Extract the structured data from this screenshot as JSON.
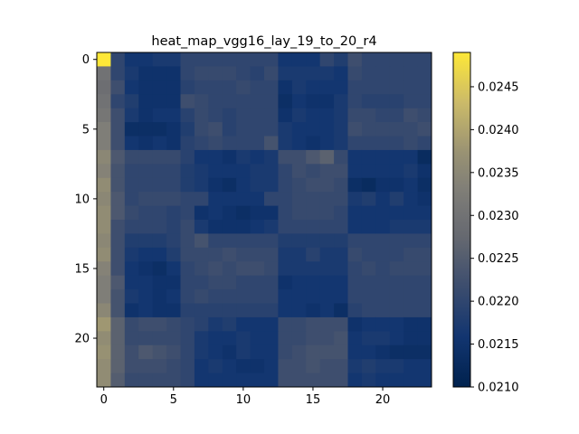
{
  "chart_data": {
    "type": "heatmap",
    "title": "heat_map_vgg16_lay_19_to_20_r4",
    "xlabel": "",
    "ylabel": "",
    "rows": 24,
    "cols": 24,
    "x_ticks": [
      0,
      5,
      10,
      15,
      20
    ],
    "y_ticks": [
      0,
      5,
      10,
      15,
      20
    ],
    "colorbar": {
      "colormap": "cividis",
      "vmin": 0.021,
      "vmax": 0.0249,
      "ticks": [
        "0.0210",
        "0.0215",
        "0.0220",
        "0.0225",
        "0.0230",
        "0.0235",
        "0.0240",
        "0.0245"
      ]
    },
    "values": [
      [
        0.0249,
        0.022,
        0.0216,
        0.0216,
        0.0217,
        0.0217,
        0.022,
        0.022,
        0.022,
        0.022,
        0.022,
        0.022,
        0.022,
        0.0216,
        0.0216,
        0.0216,
        0.022,
        0.0218,
        0.0222,
        0.022,
        0.022,
        0.022,
        0.022,
        0.022
      ],
      [
        0.023,
        0.022,
        0.0217,
        0.0215,
        0.0215,
        0.0215,
        0.022,
        0.0221,
        0.0221,
        0.0221,
        0.022,
        0.0219,
        0.0221,
        0.0217,
        0.0217,
        0.0217,
        0.0217,
        0.0216,
        0.0221,
        0.022,
        0.022,
        0.022,
        0.022,
        0.022
      ],
      [
        0.0229,
        0.0222,
        0.0216,
        0.0215,
        0.0215,
        0.0215,
        0.0219,
        0.022,
        0.022,
        0.022,
        0.0221,
        0.022,
        0.022,
        0.0215,
        0.0217,
        0.0216,
        0.0216,
        0.0216,
        0.022,
        0.022,
        0.022,
        0.022,
        0.022,
        0.022
      ],
      [
        0.023,
        0.022,
        0.0218,
        0.0215,
        0.0215,
        0.0215,
        0.0222,
        0.0221,
        0.022,
        0.022,
        0.022,
        0.022,
        0.022,
        0.0214,
        0.0216,
        0.0215,
        0.0215,
        0.0217,
        0.022,
        0.0219,
        0.0219,
        0.0219,
        0.022,
        0.022
      ],
      [
        0.0231,
        0.0222,
        0.0217,
        0.0215,
        0.0216,
        0.0216,
        0.0219,
        0.0221,
        0.022,
        0.0219,
        0.022,
        0.022,
        0.022,
        0.0215,
        0.0217,
        0.0216,
        0.0216,
        0.0217,
        0.0221,
        0.0221,
        0.022,
        0.022,
        0.0222,
        0.0221
      ],
      [
        0.0233,
        0.0222,
        0.0214,
        0.0214,
        0.0214,
        0.0215,
        0.0218,
        0.0221,
        0.0222,
        0.0219,
        0.022,
        0.022,
        0.022,
        0.0217,
        0.0216,
        0.0216,
        0.0216,
        0.0217,
        0.0222,
        0.0221,
        0.0221,
        0.0221,
        0.0221,
        0.0222
      ],
      [
        0.0233,
        0.0222,
        0.0216,
        0.0215,
        0.0216,
        0.0215,
        0.0219,
        0.022,
        0.0221,
        0.022,
        0.022,
        0.022,
        0.0223,
        0.0217,
        0.0216,
        0.0215,
        0.0216,
        0.0217,
        0.022,
        0.022,
        0.022,
        0.022,
        0.0221,
        0.022
      ],
      [
        0.0235,
        0.0224,
        0.0221,
        0.0221,
        0.0221,
        0.0221,
        0.0219,
        0.0216,
        0.0216,
        0.0215,
        0.0217,
        0.0216,
        0.0217,
        0.0222,
        0.0222,
        0.0224,
        0.0226,
        0.0221,
        0.0216,
        0.0216,
        0.0216,
        0.0216,
        0.0216,
        0.0213
      ],
      [
        0.0234,
        0.0223,
        0.022,
        0.022,
        0.022,
        0.022,
        0.0218,
        0.0217,
        0.0216,
        0.0216,
        0.0216,
        0.0217,
        0.0217,
        0.022,
        0.0222,
        0.0221,
        0.0222,
        0.0222,
        0.0216,
        0.0216,
        0.0216,
        0.0216,
        0.0217,
        0.0215
      ],
      [
        0.0236,
        0.0223,
        0.022,
        0.022,
        0.022,
        0.022,
        0.0218,
        0.0217,
        0.0215,
        0.0214,
        0.0216,
        0.0217,
        0.0217,
        0.022,
        0.0221,
        0.0222,
        0.0222,
        0.0221,
        0.0214,
        0.0213,
        0.0215,
        0.0215,
        0.0216,
        0.0214
      ],
      [
        0.0235,
        0.0224,
        0.022,
        0.0221,
        0.0221,
        0.0221,
        0.022,
        0.022,
        0.0216,
        0.0216,
        0.0216,
        0.0216,
        0.022,
        0.022,
        0.0221,
        0.0221,
        0.0221,
        0.0221,
        0.0217,
        0.0218,
        0.0216,
        0.0218,
        0.0216,
        0.0215
      ],
      [
        0.0236,
        0.0224,
        0.0221,
        0.022,
        0.022,
        0.0219,
        0.022,
        0.0215,
        0.0216,
        0.0215,
        0.0214,
        0.0215,
        0.0215,
        0.022,
        0.0221,
        0.0221,
        0.0221,
        0.022,
        0.0216,
        0.0216,
        0.0216,
        0.0216,
        0.0216,
        0.0216
      ],
      [
        0.0236,
        0.0222,
        0.022,
        0.022,
        0.022,
        0.0219,
        0.0221,
        0.0217,
        0.0215,
        0.0215,
        0.0215,
        0.0216,
        0.0217,
        0.022,
        0.022,
        0.022,
        0.022,
        0.022,
        0.0216,
        0.0216,
        0.0216,
        0.0217,
        0.0217,
        0.0217
      ],
      [
        0.0235,
        0.0222,
        0.0218,
        0.0218,
        0.0218,
        0.0219,
        0.0221,
        0.0223,
        0.022,
        0.022,
        0.022,
        0.022,
        0.022,
        0.0218,
        0.0218,
        0.0218,
        0.0218,
        0.0218,
        0.022,
        0.022,
        0.022,
        0.022,
        0.022,
        0.022
      ],
      [
        0.0236,
        0.0222,
        0.0217,
        0.0216,
        0.0216,
        0.0218,
        0.0221,
        0.0221,
        0.0221,
        0.0222,
        0.0221,
        0.0221,
        0.0221,
        0.0217,
        0.0217,
        0.0219,
        0.0217,
        0.0217,
        0.0221,
        0.022,
        0.022,
        0.022,
        0.0221,
        0.0221
      ],
      [
        0.0234,
        0.0222,
        0.0216,
        0.0215,
        0.0214,
        0.0216,
        0.022,
        0.0221,
        0.0222,
        0.0221,
        0.0222,
        0.0222,
        0.0221,
        0.0217,
        0.0217,
        0.0217,
        0.0217,
        0.0217,
        0.022,
        0.0221,
        0.022,
        0.0221,
        0.0221,
        0.0221
      ],
      [
        0.0233,
        0.0224,
        0.0216,
        0.0216,
        0.0215,
        0.0215,
        0.022,
        0.022,
        0.0221,
        0.0221,
        0.022,
        0.022,
        0.022,
        0.0215,
        0.0216,
        0.0216,
        0.0216,
        0.0216,
        0.022,
        0.022,
        0.022,
        0.022,
        0.022,
        0.022
      ],
      [
        0.0233,
        0.0223,
        0.0217,
        0.0216,
        0.0215,
        0.0216,
        0.022,
        0.0221,
        0.022,
        0.022,
        0.022,
        0.022,
        0.022,
        0.0216,
        0.0216,
        0.0216,
        0.0216,
        0.0216,
        0.022,
        0.022,
        0.022,
        0.022,
        0.022,
        0.022
      ],
      [
        0.0235,
        0.0223,
        0.0215,
        0.0216,
        0.0215,
        0.0215,
        0.0219,
        0.0219,
        0.0219,
        0.0219,
        0.0219,
        0.0219,
        0.0219,
        0.0216,
        0.0216,
        0.0215,
        0.0216,
        0.0214,
        0.0219,
        0.022,
        0.022,
        0.022,
        0.022,
        0.022
      ],
      [
        0.0238,
        0.0226,
        0.0221,
        0.0222,
        0.0222,
        0.0221,
        0.022,
        0.0219,
        0.0217,
        0.0218,
        0.0216,
        0.0216,
        0.0216,
        0.0221,
        0.0221,
        0.0222,
        0.0222,
        0.0222,
        0.0215,
        0.0216,
        0.0216,
        0.0216,
        0.0215,
        0.0215
      ],
      [
        0.0236,
        0.0226,
        0.0221,
        0.0221,
        0.0221,
        0.0221,
        0.022,
        0.0217,
        0.0216,
        0.0216,
        0.0217,
        0.0216,
        0.0216,
        0.0221,
        0.0221,
        0.0222,
        0.0222,
        0.0223,
        0.0216,
        0.0217,
        0.0217,
        0.0216,
        0.0215,
        0.0215
      ],
      [
        0.0237,
        0.0226,
        0.0222,
        0.0224,
        0.0223,
        0.0222,
        0.022,
        0.0217,
        0.0216,
        0.0215,
        0.0217,
        0.0216,
        0.0216,
        0.0221,
        0.0222,
        0.0223,
        0.0223,
        0.0223,
        0.0216,
        0.0216,
        0.0215,
        0.0214,
        0.0214,
        0.0214
      ],
      [
        0.0236,
        0.0226,
        0.0222,
        0.0222,
        0.0222,
        0.0221,
        0.022,
        0.0216,
        0.0217,
        0.0216,
        0.0215,
        0.0215,
        0.0216,
        0.0222,
        0.0222,
        0.0223,
        0.0222,
        0.0222,
        0.0217,
        0.0218,
        0.0217,
        0.0217,
        0.0216,
        0.0216
      ],
      [
        0.0236,
        0.0225,
        0.0221,
        0.0221,
        0.0221,
        0.0221,
        0.022,
        0.0216,
        0.0216,
        0.0216,
        0.0216,
        0.0216,
        0.0216,
        0.0222,
        0.0222,
        0.0222,
        0.0222,
        0.0222,
        0.0216,
        0.0217,
        0.0216,
        0.0216,
        0.0216,
        0.0216
      ]
    ]
  }
}
